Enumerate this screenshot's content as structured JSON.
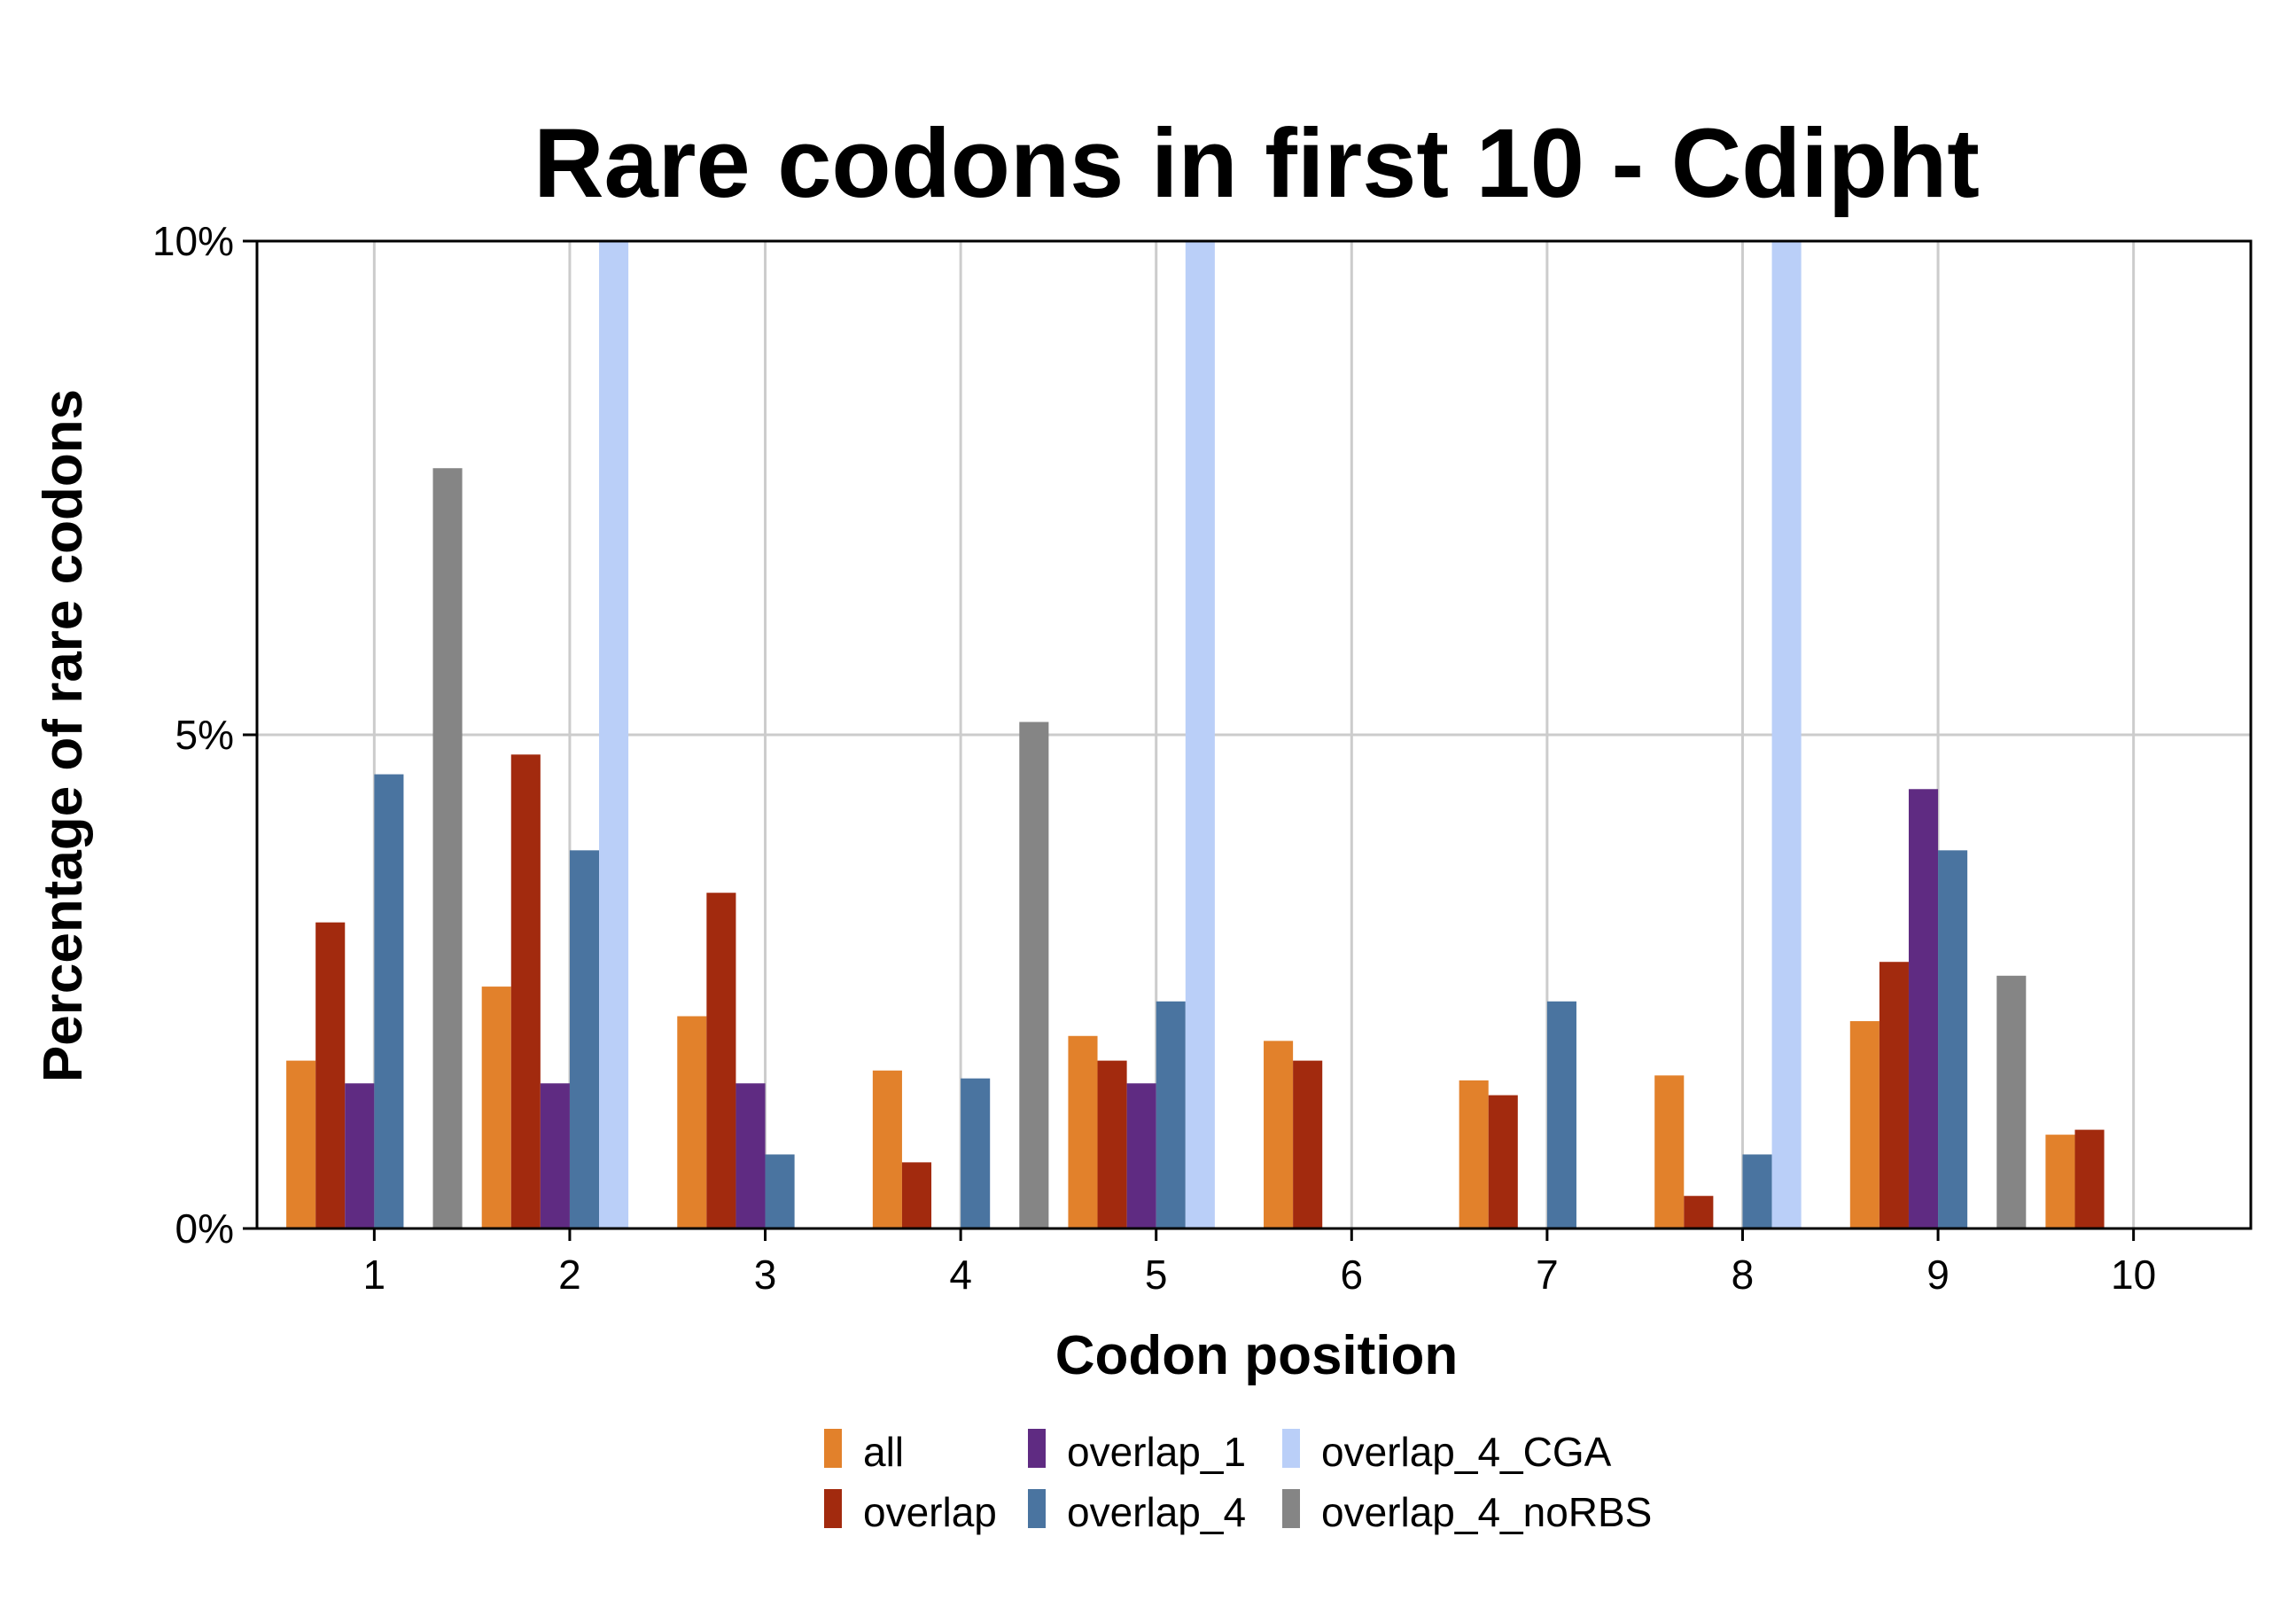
{
  "chart_data": {
    "type": "bar",
    "title": "Rare codons in first 10 - Cdipht",
    "xlabel": "Codon position",
    "ylabel": "Percentage of rare codons",
    "categories": [
      "1",
      "2",
      "3",
      "4",
      "5",
      "6",
      "7",
      "8",
      "9",
      "10"
    ],
    "ylim": [
      0,
      10
    ],
    "yticks": [
      {
        "value": 0,
        "label": "0%"
      },
      {
        "value": 5,
        "label": "5%"
      },
      {
        "value": 10,
        "label": "10%"
      }
    ],
    "grid": true,
    "legend_position": "bottom",
    "series": [
      {
        "name": "all",
        "color": "#E2812B",
        "values": [
          1.7,
          2.45,
          2.15,
          1.6,
          1.95,
          1.9,
          1.5,
          1.55,
          2.1,
          0.95
        ]
      },
      {
        "name": "overlap",
        "color": "#A22A0E",
        "values": [
          3.1,
          4.8,
          3.4,
          0.67,
          1.7,
          1.7,
          1.35,
          0.33,
          2.7,
          1.0
        ]
      },
      {
        "name": "overlap_1",
        "color": "#5F2B82",
        "values": [
          1.47,
          1.47,
          1.47,
          0,
          1.47,
          0,
          0,
          0,
          4.45,
          0
        ]
      },
      {
        "name": "overlap_4",
        "color": "#4A74A0",
        "values": [
          4.6,
          3.83,
          0.75,
          1.52,
          2.3,
          0,
          2.3,
          0.75,
          3.83,
          0
        ]
      },
      {
        "name": "overlap_4_CGA",
        "color": "#BACFF8",
        "values": [
          0,
          10,
          0,
          0,
          10,
          0,
          0,
          10,
          0,
          0
        ]
      },
      {
        "name": "overlap_4_noRBS",
        "color": "#858585",
        "values": [
          7.7,
          0,
          0,
          5.13,
          0,
          0,
          0,
          0,
          2.56,
          0
        ]
      }
    ]
  }
}
